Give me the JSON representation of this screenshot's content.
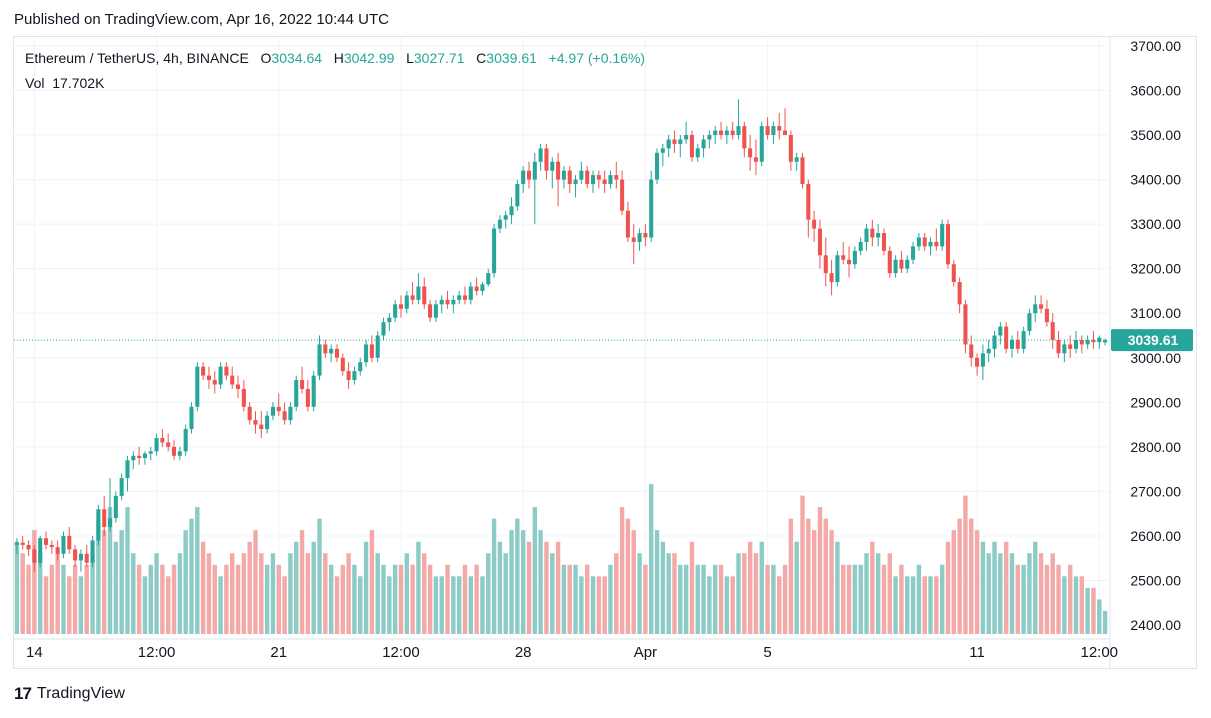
{
  "header": {
    "published": "Published on TradingView.com, Apr 16, 2022 10:44 UTC"
  },
  "legend": {
    "symbol": "Ethereum / TetherUS, 4h, BINANCE",
    "o_label": "O",
    "o": "3034.64",
    "h_label": "H",
    "h": "3042.99",
    "l_label": "L",
    "l": "3027.71",
    "c_label": "C",
    "c": "3039.61",
    "change": "+4.97 (+0.16%)",
    "vol_label": "Vol",
    "vol": "17.702K"
  },
  "footer": {
    "brand": "TradingView",
    "logo": "17"
  },
  "colors": {
    "up": "#26a69a",
    "down": "#ef5350",
    "vol_up": "#8dccc6",
    "vol_down": "#f3a9a7",
    "grid": "#f0f3fa"
  },
  "chart_data": {
    "type": "candlestick",
    "title": "Ethereum / TetherUS, 4h, BINANCE",
    "ylim": [
      2380,
      3720
    ],
    "y_ticks": [
      "3700.00",
      "3600.00",
      "3500.00",
      "3400.00",
      "3300.00",
      "3200.00",
      "3100.00",
      "3000.00",
      "2900.00",
      "2800.00",
      "2700.00",
      "2600.00",
      "2500.00",
      "2400.00"
    ],
    "x_ticks": [
      {
        "label": "14",
        "index": 3
      },
      {
        "label": "12:00",
        "index": 24
      },
      {
        "label": "21",
        "index": 45
      },
      {
        "label": "12:00",
        "index": 66
      },
      {
        "label": "28",
        "index": 87
      },
      {
        "label": "Apr",
        "index": 108
      },
      {
        "label": "5",
        "index": 129
      },
      {
        "label": "11",
        "index": 165
      },
      {
        "label": "12:00",
        "index": 186
      }
    ],
    "last_price": "3039.61",
    "candles": [
      [
        2580,
        2595,
        2560,
        2585,
        8
      ],
      [
        2585,
        2600,
        2570,
        2580,
        7
      ],
      [
        2580,
        2590,
        2555,
        2570,
        6
      ],
      [
        2570,
        2580,
        2520,
        2540,
        9
      ],
      [
        2540,
        2600,
        2530,
        2595,
        7
      ],
      [
        2595,
        2610,
        2570,
        2580,
        5
      ],
      [
        2580,
        2590,
        2560,
        2575,
        6
      ],
      [
        2575,
        2590,
        2545,
        2560,
        7
      ],
      [
        2560,
        2610,
        2550,
        2600,
        6
      ],
      [
        2600,
        2620,
        2560,
        2570,
        5
      ],
      [
        2570,
        2580,
        2530,
        2545,
        6
      ],
      [
        2545,
        2570,
        2520,
        2560,
        5
      ],
      [
        2560,
        2580,
        2530,
        2540,
        6
      ],
      [
        2540,
        2600,
        2530,
        2590,
        7
      ],
      [
        2590,
        2670,
        2580,
        2660,
        10
      ],
      [
        2660,
        2690,
        2600,
        2620,
        9
      ],
      [
        2620,
        2730,
        2610,
        2640,
        11
      ],
      [
        2640,
        2700,
        2630,
        2690,
        8
      ],
      [
        2690,
        2740,
        2680,
        2730,
        9
      ],
      [
        2730,
        2780,
        2700,
        2770,
        11
      ],
      [
        2770,
        2790,
        2750,
        2780,
        7
      ],
      [
        2780,
        2800,
        2760,
        2775,
        6
      ],
      [
        2775,
        2790,
        2760,
        2785,
        5
      ],
      [
        2785,
        2800,
        2770,
        2790,
        6
      ],
      [
        2790,
        2830,
        2780,
        2820,
        7
      ],
      [
        2820,
        2840,
        2800,
        2810,
        6
      ],
      [
        2810,
        2830,
        2790,
        2800,
        5
      ],
      [
        2800,
        2815,
        2770,
        2780,
        6
      ],
      [
        2780,
        2800,
        2770,
        2790,
        7
      ],
      [
        2790,
        2850,
        2780,
        2840,
        9
      ],
      [
        2840,
        2900,
        2830,
        2890,
        10
      ],
      [
        2890,
        2990,
        2880,
        2980,
        11
      ],
      [
        2980,
        2990,
        2950,
        2960,
        8
      ],
      [
        2960,
        2980,
        2930,
        2950,
        7
      ],
      [
        2950,
        2970,
        2920,
        2940,
        6
      ],
      [
        2940,
        2990,
        2930,
        2980,
        5
      ],
      [
        2980,
        2990,
        2950,
        2960,
        6
      ],
      [
        2960,
        2980,
        2930,
        2940,
        7
      ],
      [
        2940,
        2960,
        2910,
        2930,
        6
      ],
      [
        2930,
        2950,
        2880,
        2890,
        7
      ],
      [
        2890,
        2900,
        2850,
        2860,
        8
      ],
      [
        2860,
        2880,
        2830,
        2850,
        9
      ],
      [
        2850,
        2880,
        2820,
        2840,
        7
      ],
      [
        2840,
        2880,
        2830,
        2870,
        6
      ],
      [
        2870,
        2900,
        2860,
        2890,
        7
      ],
      [
        2890,
        2920,
        2870,
        2880,
        6
      ],
      [
        2880,
        2900,
        2850,
        2860,
        5
      ],
      [
        2860,
        2900,
        2850,
        2890,
        7
      ],
      [
        2890,
        2960,
        2880,
        2950,
        8
      ],
      [
        2950,
        2980,
        2920,
        2930,
        9
      ],
      [
        2930,
        2950,
        2880,
        2890,
        7
      ],
      [
        2890,
        2970,
        2880,
        2960,
        8
      ],
      [
        2960,
        3050,
        2950,
        3030,
        10
      ],
      [
        3030,
        3040,
        3000,
        3010,
        7
      ],
      [
        3010,
        3030,
        2990,
        3020,
        6
      ],
      [
        3020,
        3030,
        2990,
        3000,
        5
      ],
      [
        3000,
        3010,
        2960,
        2970,
        6
      ],
      [
        2970,
        2990,
        2930,
        2950,
        7
      ],
      [
        2950,
        2980,
        2940,
        2970,
        6
      ],
      [
        2970,
        3000,
        2960,
        2990,
        5
      ],
      [
        2990,
        3040,
        2980,
        3030,
        8
      ],
      [
        3030,
        3050,
        2990,
        3000,
        9
      ],
      [
        3000,
        3060,
        2990,
        3050,
        7
      ],
      [
        3050,
        3090,
        3040,
        3080,
        6
      ],
      [
        3080,
        3100,
        3060,
        3090,
        5
      ],
      [
        3090,
        3130,
        3080,
        3120,
        6
      ],
      [
        3120,
        3140,
        3090,
        3110,
        6
      ],
      [
        3110,
        3150,
        3100,
        3140,
        7
      ],
      [
        3140,
        3170,
        3120,
        3130,
        6
      ],
      [
        3130,
        3190,
        3120,
        3160,
        8
      ],
      [
        3160,
        3180,
        3110,
        3120,
        7
      ],
      [
        3120,
        3130,
        3080,
        3090,
        6
      ],
      [
        3090,
        3130,
        3080,
        3120,
        5
      ],
      [
        3120,
        3140,
        3100,
        3130,
        5
      ],
      [
        3130,
        3150,
        3110,
        3120,
        6
      ],
      [
        3120,
        3140,
        3100,
        3130,
        5
      ],
      [
        3130,
        3150,
        3120,
        3140,
        5
      ],
      [
        3140,
        3160,
        3120,
        3130,
        6
      ],
      [
        3130,
        3170,
        3120,
        3160,
        5
      ],
      [
        3160,
        3180,
        3140,
        3150,
        6
      ],
      [
        3150,
        3170,
        3140,
        3165,
        5
      ],
      [
        3165,
        3200,
        3160,
        3190,
        7
      ],
      [
        3190,
        3300,
        3180,
        3290,
        10
      ],
      [
        3290,
        3320,
        3280,
        3310,
        8
      ],
      [
        3310,
        3330,
        3290,
        3320,
        7
      ],
      [
        3320,
        3360,
        3300,
        3340,
        9
      ],
      [
        3340,
        3400,
        3330,
        3390,
        10
      ],
      [
        3390,
        3430,
        3370,
        3420,
        9
      ],
      [
        3420,
        3440,
        3380,
        3400,
        8
      ],
      [
        3400,
        3460,
        3300,
        3440,
        11
      ],
      [
        3440,
        3480,
        3420,
        3470,
        9
      ],
      [
        3470,
        3480,
        3400,
        3420,
        8
      ],
      [
        3420,
        3450,
        3380,
        3440,
        7
      ],
      [
        3440,
        3460,
        3340,
        3400,
        8
      ],
      [
        3400,
        3430,
        3380,
        3420,
        6
      ],
      [
        3420,
        3430,
        3370,
        3390,
        6
      ],
      [
        3390,
        3410,
        3360,
        3400,
        6
      ],
      [
        3400,
        3440,
        3390,
        3420,
        5
      ],
      [
        3420,
        3430,
        3380,
        3390,
        6
      ],
      [
        3390,
        3420,
        3370,
        3410,
        5
      ],
      [
        3410,
        3420,
        3380,
        3400,
        5
      ],
      [
        3400,
        3420,
        3370,
        3390,
        5
      ],
      [
        3390,
        3420,
        3380,
        3410,
        6
      ],
      [
        3410,
        3440,
        3380,
        3400,
        7
      ],
      [
        3400,
        3420,
        3320,
        3330,
        11
      ],
      [
        3330,
        3350,
        3260,
        3270,
        10
      ],
      [
        3270,
        3300,
        3210,
        3260,
        9
      ],
      [
        3260,
        3290,
        3240,
        3280,
        7
      ],
      [
        3280,
        3300,
        3250,
        3270,
        6
      ],
      [
        3270,
        3420,
        3260,
        3400,
        13
      ],
      [
        3400,
        3470,
        3390,
        3460,
        9
      ],
      [
        3460,
        3480,
        3430,
        3470,
        8
      ],
      [
        3470,
        3500,
        3450,
        3490,
        7
      ],
      [
        3490,
        3510,
        3460,
        3480,
        7
      ],
      [
        3480,
        3500,
        3450,
        3490,
        6
      ],
      [
        3490,
        3530,
        3480,
        3500,
        6
      ],
      [
        3500,
        3510,
        3440,
        3450,
        8
      ],
      [
        3450,
        3480,
        3440,
        3470,
        6
      ],
      [
        3470,
        3500,
        3450,
        3490,
        6
      ],
      [
        3490,
        3510,
        3470,
        3500,
        5
      ],
      [
        3500,
        3520,
        3480,
        3510,
        6
      ],
      [
        3510,
        3530,
        3490,
        3500,
        6
      ],
      [
        3500,
        3520,
        3480,
        3510,
        5
      ],
      [
        3510,
        3530,
        3490,
        3500,
        5
      ],
      [
        3500,
        3580,
        3490,
        3520,
        7
      ],
      [
        3520,
        3530,
        3450,
        3470,
        7
      ],
      [
        3470,
        3500,
        3420,
        3450,
        8
      ],
      [
        3450,
        3490,
        3410,
        3440,
        7
      ],
      [
        3440,
        3530,
        3430,
        3520,
        8
      ],
      [
        3520,
        3540,
        3490,
        3500,
        6
      ],
      [
        3500,
        3530,
        3480,
        3520,
        6
      ],
      [
        3520,
        3550,
        3490,
        3510,
        5
      ],
      [
        3510,
        3560,
        3500,
        3500,
        6
      ],
      [
        3500,
        3510,
        3420,
        3440,
        10
      ],
      [
        3440,
        3460,
        3420,
        3450,
        8
      ],
      [
        3450,
        3460,
        3380,
        3390,
        12
      ],
      [
        3390,
        3400,
        3270,
        3310,
        10
      ],
      [
        3310,
        3330,
        3260,
        3290,
        9
      ],
      [
        3290,
        3310,
        3200,
        3230,
        11
      ],
      [
        3230,
        3270,
        3160,
        3190,
        10
      ],
      [
        3190,
        3220,
        3140,
        3170,
        9
      ],
      [
        3170,
        3240,
        3160,
        3230,
        8
      ],
      [
        3230,
        3260,
        3210,
        3220,
        6
      ],
      [
        3220,
        3250,
        3180,
        3210,
        6
      ],
      [
        3210,
        3250,
        3200,
        3240,
        6
      ],
      [
        3240,
        3270,
        3230,
        3260,
        6
      ],
      [
        3260,
        3300,
        3240,
        3290,
        7
      ],
      [
        3290,
        3310,
        3250,
        3270,
        8
      ],
      [
        3270,
        3300,
        3250,
        3280,
        7
      ],
      [
        3280,
        3290,
        3230,
        3240,
        6
      ],
      [
        3240,
        3250,
        3180,
        3190,
        7
      ],
      [
        3190,
        3230,
        3180,
        3220,
        5
      ],
      [
        3220,
        3240,
        3190,
        3200,
        6
      ],
      [
        3200,
        3230,
        3190,
        3220,
        5
      ],
      [
        3220,
        3260,
        3210,
        3250,
        5
      ],
      [
        3250,
        3280,
        3240,
        3270,
        6
      ],
      [
        3270,
        3280,
        3240,
        3250,
        5
      ],
      [
        3250,
        3270,
        3230,
        3260,
        5
      ],
      [
        3260,
        3290,
        3240,
        3250,
        5
      ],
      [
        3250,
        3310,
        3240,
        3300,
        6
      ],
      [
        3300,
        3310,
        3200,
        3210,
        8
      ],
      [
        3210,
        3220,
        3160,
        3170,
        9
      ],
      [
        3170,
        3180,
        3100,
        3120,
        10
      ],
      [
        3120,
        3130,
        3010,
        3030,
        12
      ],
      [
        3030,
        3050,
        2980,
        3000,
        10
      ],
      [
        3000,
        3010,
        2960,
        2980,
        9
      ],
      [
        2980,
        3030,
        2950,
        3010,
        8
      ],
      [
        3010,
        3040,
        2990,
        3020,
        7
      ],
      [
        3020,
        3060,
        3000,
        3050,
        8
      ],
      [
        3050,
        3080,
        3030,
        3070,
        7
      ],
      [
        3070,
        3080,
        3010,
        3020,
        8
      ],
      [
        3020,
        3050,
        3000,
        3040,
        7
      ],
      [
        3040,
        3060,
        3010,
        3020,
        6
      ],
      [
        3020,
        3070,
        3010,
        3060,
        6
      ],
      [
        3060,
        3110,
        3050,
        3100,
        7
      ],
      [
        3100,
        3140,
        3080,
        3120,
        8
      ],
      [
        3120,
        3140,
        3100,
        3110,
        7
      ],
      [
        3110,
        3130,
        3070,
        3080,
        6
      ],
      [
        3080,
        3100,
        3020,
        3040,
        7
      ],
      [
        3040,
        3060,
        3000,
        3010,
        6
      ],
      [
        3010,
        3040,
        2990,
        3030,
        5
      ],
      [
        3030,
        3050,
        3000,
        3020,
        6
      ],
      [
        3020,
        3060,
        3010,
        3040,
        5
      ],
      [
        3040,
        3050,
        3010,
        3030,
        5
      ],
      [
        3030,
        3050,
        3020,
        3040,
        4
      ],
      [
        3040,
        3060,
        3020,
        3035,
        4
      ],
      [
        3035,
        3050,
        3020,
        3045,
        3
      ],
      [
        3034.64,
        3042.99,
        3027.71,
        3039.61,
        2
      ]
    ]
  }
}
